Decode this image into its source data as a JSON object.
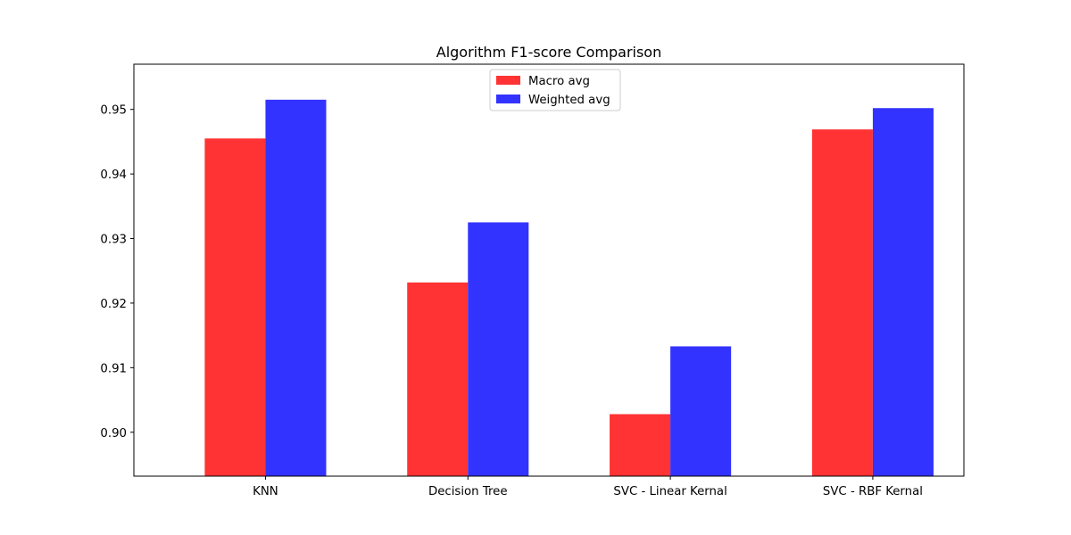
{
  "chart_data": {
    "type": "bar",
    "title": "Algorithm F1-score Comparison",
    "xlabel": "",
    "ylabel": "",
    "categories": [
      "KNN",
      "Decision Tree",
      "SVC - Linear Kernal",
      "SVC - RBF Kernal"
    ],
    "series": [
      {
        "name": "Macro avg",
        "color": "#ff3333",
        "values": [
          0.9455,
          0.9232,
          0.9028,
          0.9469
        ]
      },
      {
        "name": "Weighted avg",
        "color": "#3333ff",
        "values": [
          0.9515,
          0.9325,
          0.9133,
          0.9502
        ]
      }
    ],
    "ylim": [
      0.8932,
      0.957
    ],
    "yticks": [
      0.9,
      0.91,
      0.92,
      0.93,
      0.94,
      0.95
    ],
    "ytick_labels": [
      "0.90",
      "0.91",
      "0.92",
      "0.93",
      "0.94",
      "0.95"
    ],
    "grid": false,
    "legend_position": "upper center"
  }
}
